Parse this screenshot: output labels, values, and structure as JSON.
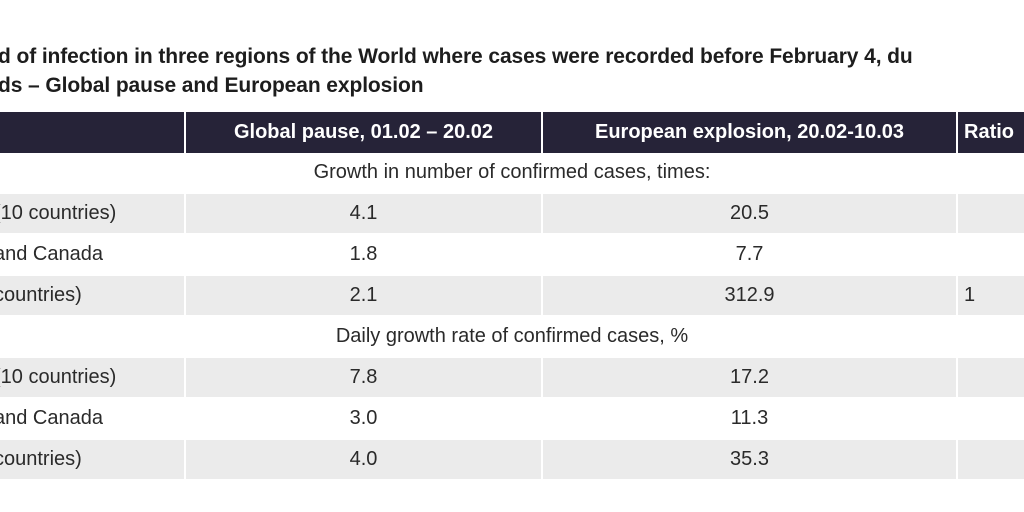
{
  "title": {
    "line1": "d of infection in three regions of the World where cases were recorded before February 4, du",
    "line2": "ds – Global pause and European explosion"
  },
  "table": {
    "headers": [
      "",
      "Global pause, 01.02 – 20.02",
      "European explosion, 20.02-10.03",
      "Ratio"
    ],
    "sections": [
      {
        "label": "Growth in number of confirmed cases, times:",
        "rows": [
          {
            "region": "(10 countries)",
            "global_pause": "4.1",
            "european_explosion": "20.5",
            "ratio": ""
          },
          {
            "region": "and Canada",
            "global_pause": "1.8",
            "european_explosion": "7.7",
            "ratio": ""
          },
          {
            "region": " countries)",
            "global_pause": "2.1",
            "european_explosion": "312.9",
            "ratio": "1"
          }
        ]
      },
      {
        "label": "Daily growth rate of confirmed cases, %",
        "rows": [
          {
            "region": "(10 countries)",
            "global_pause": "7.8",
            "european_explosion": "17.2",
            "ratio": ""
          },
          {
            "region": "and Canada",
            "global_pause": "3.0",
            "european_explosion": "11.3",
            "ratio": ""
          },
          {
            "region": " countries)",
            "global_pause": "4.0",
            "european_explosion": "35.3",
            "ratio": ""
          }
        ]
      }
    ]
  },
  "colors": {
    "header_bg": "#262338",
    "header_text": "#ffffff",
    "shade_bg": "#ebebeb",
    "text": "#2a2a2a"
  }
}
